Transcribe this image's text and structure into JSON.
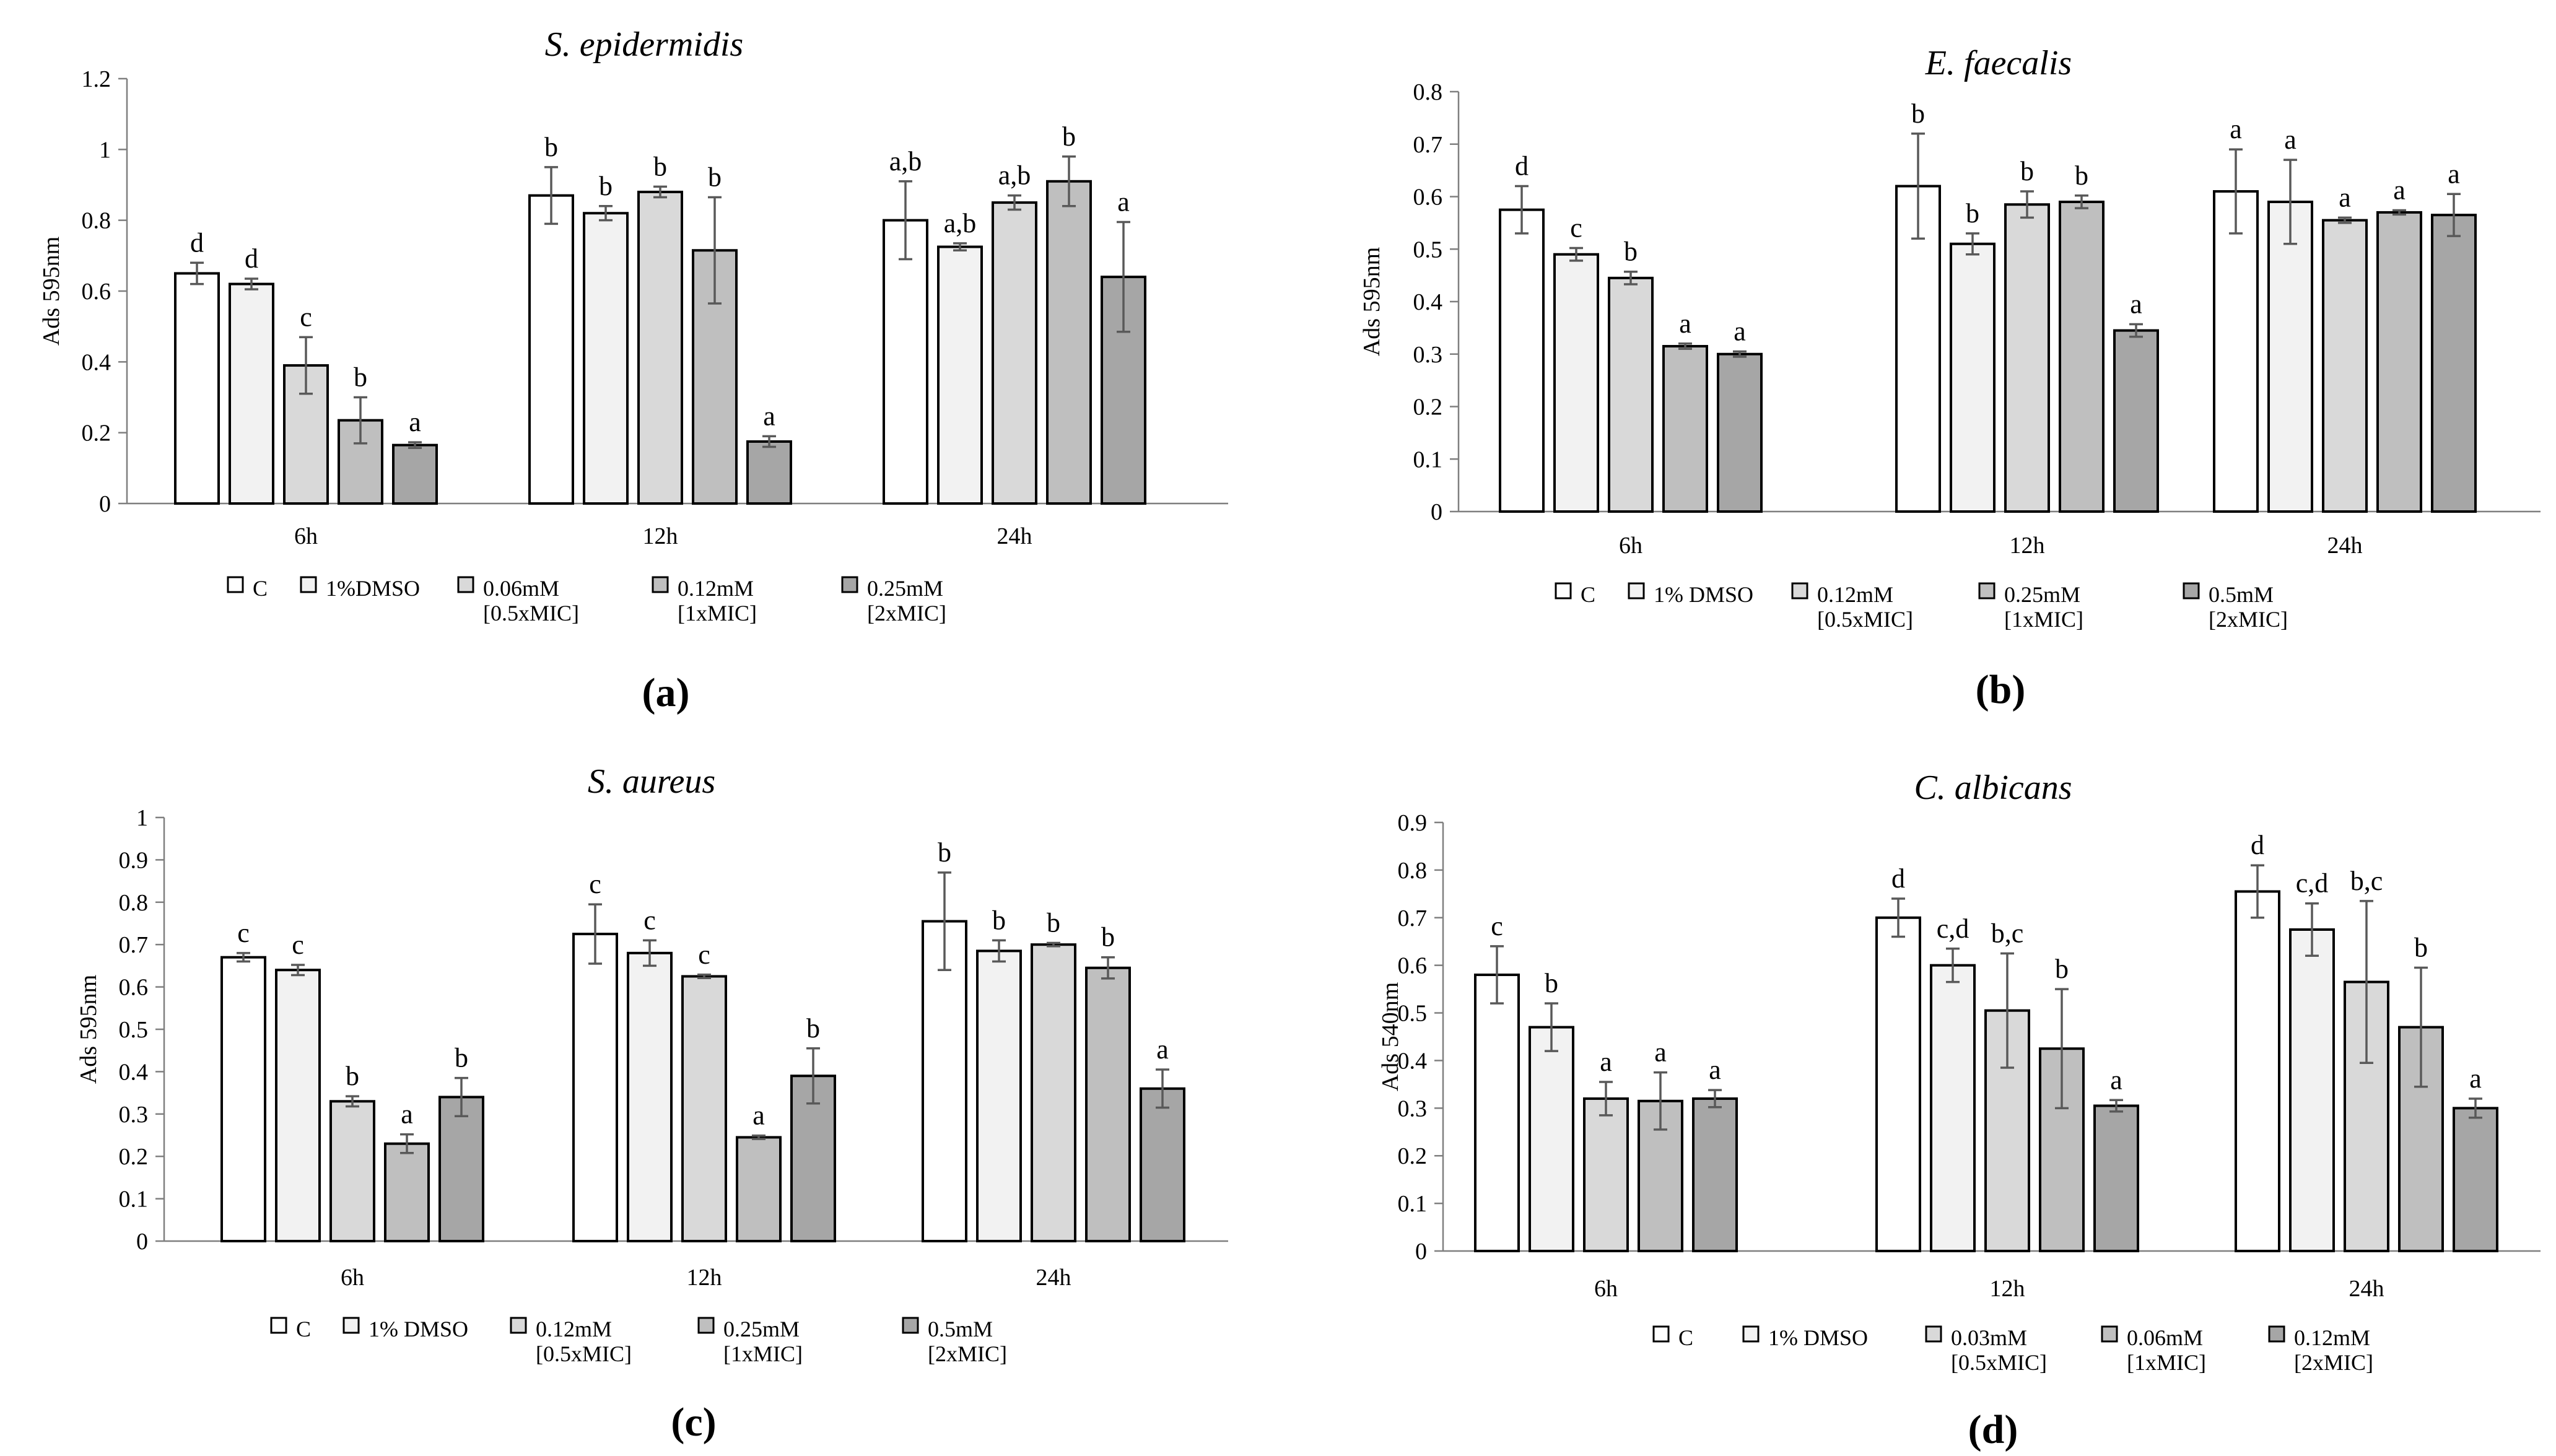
{
  "colors": {
    "C": "#ffffff",
    "DMSO": "#f2f2f2",
    "low": "#d9d9d9",
    "mid": "#bfbfbf",
    "high": "#a6a6a6"
  },
  "chart_data": [
    {
      "type": "bar",
      "panel_label": "(a)",
      "title": "S. epidermidis",
      "ylabel": "Ads 595nm",
      "ylim": [
        0,
        1.2
      ],
      "yticks": [
        "0",
        "0.2",
        "0.4",
        "0.6",
        "0.8",
        "1",
        "1.2"
      ],
      "categories": [
        "6h",
        "12h",
        "24h"
      ],
      "series": [
        {
          "name": "C",
          "legend": [
            "C"
          ],
          "color_key": "C",
          "values": [
            0.65,
            0.87,
            0.8
          ],
          "errors": [
            0.03,
            0.08,
            0.11
          ],
          "letters": [
            "d",
            "b",
            "a,b"
          ]
        },
        {
          "name": "1%DMSO",
          "legend": [
            "1%DMSO"
          ],
          "color_key": "DMSO",
          "values": [
            0.62,
            0.82,
            0.725
          ],
          "errors": [
            0.015,
            0.02,
            0.01
          ],
          "letters": [
            "d",
            "b",
            "a,b"
          ]
        },
        {
          "name": "0.06mM [0.5xMIC]",
          "legend": [
            "0.06mM",
            "[0.5xMIC]"
          ],
          "color_key": "low",
          "values": [
            0.39,
            0.88,
            0.85
          ],
          "errors": [
            0.08,
            0.015,
            0.02
          ],
          "letters": [
            "c",
            "b",
            "a,b"
          ]
        },
        {
          "name": "0.12mM [1xMIC]",
          "legend": [
            "0.12mM",
            "[1xMIC]"
          ],
          "color_key": "mid",
          "values": [
            0.235,
            0.715,
            0.91
          ],
          "errors": [
            0.065,
            0.15,
            0.07
          ],
          "letters": [
            "b",
            "b",
            "b"
          ]
        },
        {
          "name": "0.25mM [2xMIC]",
          "legend": [
            "0.25mM",
            "[2xMIC]"
          ],
          "color_key": "high",
          "values": [
            0.165,
            0.175,
            0.64
          ],
          "errors": [
            0.008,
            0.015,
            0.155
          ],
          "letters": [
            "a",
            "a",
            "a"
          ]
        }
      ]
    },
    {
      "type": "bar",
      "panel_label": "(b)",
      "title": "E. faecalis",
      "ylabel": "Ads 595nm",
      "ylim": [
        0,
        0.8
      ],
      "yticks": [
        "0",
        "0.1",
        "0.2",
        "0.3",
        "0.4",
        "0.5",
        "0.6",
        "0.7",
        "0.8"
      ],
      "categories": [
        "6h",
        "12h",
        "24h"
      ],
      "series": [
        {
          "name": "C",
          "legend": [
            "C"
          ],
          "color_key": "C",
          "values": [
            0.575,
            0.62,
            0.61
          ],
          "errors": [
            0.045,
            0.1,
            0.08
          ],
          "letters": [
            "d",
            "b",
            "a"
          ]
        },
        {
          "name": "1% DMSO",
          "legend": [
            "1% DMSO"
          ],
          "color_key": "DMSO",
          "values": [
            0.49,
            0.51,
            0.59
          ],
          "errors": [
            0.012,
            0.02,
            0.08
          ],
          "letters": [
            "c",
            "b",
            "a"
          ]
        },
        {
          "name": "0.12mM [0.5xMIC]",
          "legend": [
            "0.12mM",
            "[0.5xMIC]"
          ],
          "color_key": "low",
          "values": [
            0.445,
            0.585,
            0.555
          ],
          "errors": [
            0.012,
            0.025,
            0.005
          ],
          "letters": [
            "b",
            "b",
            "a"
          ]
        },
        {
          "name": "0.25mM [1xMIC]",
          "legend": [
            "0.25mM",
            "[1xMIC]"
          ],
          "color_key": "mid",
          "values": [
            0.315,
            0.59,
            0.57
          ],
          "errors": [
            0.005,
            0.012,
            0.004
          ],
          "letters": [
            "a",
            "b",
            "a"
          ]
        },
        {
          "name": "0.5mM [2xMIC]",
          "legend": [
            "0.5mM",
            "[2xMIC]"
          ],
          "color_key": "high",
          "values": [
            0.3,
            0.345,
            0.565
          ],
          "errors": [
            0.005,
            0.012,
            0.04
          ],
          "letters": [
            "a",
            "a",
            "a"
          ]
        }
      ]
    },
    {
      "type": "bar",
      "panel_label": "(c)",
      "title": "S. aureus",
      "ylabel": "Ads 595nm",
      "ylim": [
        0,
        1
      ],
      "yticks": [
        "0",
        "0.1",
        "0.2",
        "0.3",
        "0.4",
        "0.5",
        "0.6",
        "0.7",
        "0.8",
        "0.9",
        "1"
      ],
      "categories": [
        "6h",
        "12h",
        "24h"
      ],
      "series": [
        {
          "name": "C",
          "legend": [
            "C"
          ],
          "color_key": "C",
          "values": [
            0.67,
            0.725,
            0.755
          ],
          "errors": [
            0.01,
            0.07,
            0.115
          ],
          "letters": [
            "c",
            "c",
            "b"
          ]
        },
        {
          "name": "1% DMSO",
          "legend": [
            "1% DMSO"
          ],
          "color_key": "DMSO",
          "values": [
            0.64,
            0.68,
            0.685
          ],
          "errors": [
            0.012,
            0.03,
            0.025
          ],
          "letters": [
            "c",
            "c",
            "b"
          ]
        },
        {
          "name": "0.12mM [0.5xMIC]",
          "legend": [
            "0.12mM",
            "[0.5xMIC]"
          ],
          "color_key": "low",
          "values": [
            0.33,
            0.625,
            0.7
          ],
          "errors": [
            0.012,
            0.004,
            0.004
          ],
          "letters": [
            "b",
            "c",
            "b"
          ]
        },
        {
          "name": "0.25mM [1xMIC]",
          "legend": [
            "0.25mM",
            "[1xMIC]"
          ],
          "color_key": "mid",
          "values": [
            0.23,
            0.245,
            0.645
          ],
          "errors": [
            0.022,
            0.004,
            0.025
          ],
          "letters": [
            "a",
            "a",
            "b"
          ]
        },
        {
          "name": "0.5mM [2xMIC]",
          "legend": [
            "0.5mM",
            "[2xMIC]"
          ],
          "color_key": "high",
          "values": [
            0.34,
            0.39,
            0.36
          ],
          "errors": [
            0.045,
            0.065,
            0.045
          ],
          "letters": [
            "b",
            "b",
            "a"
          ]
        }
      ]
    },
    {
      "type": "bar",
      "panel_label": "(d)",
      "title": "C. albicans",
      "ylabel": "Ads 540nm",
      "ylim": [
        0,
        0.9
      ],
      "yticks": [
        "0",
        "0.1",
        "0.2",
        "0.3",
        "0.4",
        "0.5",
        "0.6",
        "0.7",
        "0.8",
        "0.9"
      ],
      "categories": [
        "6h",
        "12h",
        "24h"
      ],
      "series": [
        {
          "name": "C",
          "legend": [
            "C"
          ],
          "color_key": "C",
          "values": [
            0.58,
            0.7,
            0.755
          ],
          "errors": [
            0.06,
            0.04,
            0.055
          ],
          "letters": [
            "c",
            "d",
            "d"
          ]
        },
        {
          "name": "1% DMSO",
          "legend": [
            "1% DMSO"
          ],
          "color_key": "DMSO",
          "values": [
            0.47,
            0.6,
            0.675
          ],
          "errors": [
            0.05,
            0.035,
            0.055
          ],
          "letters": [
            "b",
            "c,d",
            "c,d"
          ]
        },
        {
          "name": "0.03mM [0.5xMIC]",
          "legend": [
            "0.03mM",
            "[0.5xMIC]"
          ],
          "color_key": "low",
          "values": [
            0.32,
            0.505,
            0.565
          ],
          "errors": [
            0.035,
            0.12,
            0.17
          ],
          "letters": [
            "a",
            "b,c",
            "b,c"
          ]
        },
        {
          "name": "0.06mM [1xMIC]",
          "legend": [
            "0.06mM",
            "[1xMIC]"
          ],
          "color_key": "mid",
          "values": [
            0.315,
            0.425,
            0.47
          ],
          "errors": [
            0.06,
            0.125,
            0.125
          ],
          "letters": [
            "a",
            "b",
            "b"
          ]
        },
        {
          "name": "0.12mM [2xMIC]",
          "legend": [
            "0.12mM",
            "[2xMIC]"
          ],
          "color_key": "high",
          "values": [
            0.32,
            0.305,
            0.3
          ],
          "errors": [
            0.018,
            0.012,
            0.02
          ],
          "letters": [
            "a",
            "a",
            "a"
          ]
        }
      ]
    }
  ]
}
